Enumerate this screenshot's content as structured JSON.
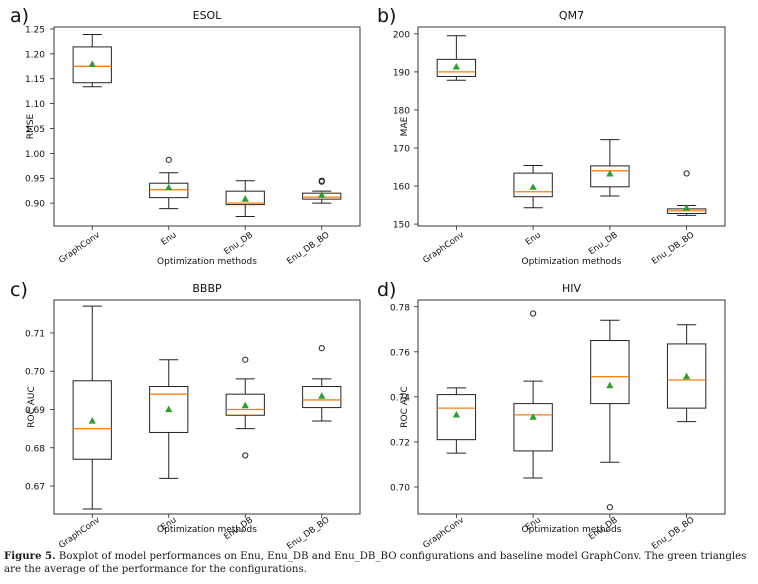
{
  "caption": {
    "label": "Figure 5.",
    "text": "Boxplot of model performances on Enu, Enu_DB and Enu_DB_BO configurations and baseline model GraphConv. The green triangles are the average of the performance for the configurations."
  },
  "colors": {
    "median": "#ff7f0e",
    "mean": "#2ca02c",
    "box": "#222222"
  },
  "chart_data": [
    {
      "panel": "a)",
      "title": "ESOL",
      "type": "box",
      "xlabel": "Optimization methods",
      "ylabel": "RMSE",
      "ylim": [
        0.854,
        1.254
      ],
      "yticks": [
        0.9,
        0.95,
        1.0,
        1.05,
        1.1,
        1.15,
        1.2,
        1.25
      ],
      "ytick_labels": [
        "0.90",
        "0.95",
        "1.00",
        "1.05",
        "1.10",
        "1.15",
        "1.20",
        "1.25"
      ],
      "categories": [
        "GraphConv",
        "Enu",
        "Enu_DB",
        "Enu_DB_BO"
      ],
      "boxes": [
        {
          "whislo": 1.134,
          "q1": 1.142,
          "med": 1.175,
          "q3": 1.214,
          "whishi": 1.239,
          "mean": 1.179,
          "fliers": []
        },
        {
          "whislo": 0.889,
          "q1": 0.911,
          "med": 0.927,
          "q3": 0.94,
          "whishi": 0.961,
          "mean": 0.931,
          "fliers": [
            0.987
          ]
        },
        {
          "whislo": 0.873,
          "q1": 0.897,
          "med": 0.9,
          "q3": 0.924,
          "whishi": 0.945,
          "mean": 0.908,
          "fliers": []
        },
        {
          "whislo": 0.9,
          "q1": 0.908,
          "med": 0.912,
          "q3": 0.92,
          "whishi": 0.924,
          "mean": 0.916,
          "fliers": [
            0.943,
            0.945
          ]
        }
      ]
    },
    {
      "panel": "b)",
      "title": "QM7",
      "type": "box",
      "xlabel": "Optimization methods",
      "ylabel": "MAE",
      "ylim": [
        149.5,
        201.8
      ],
      "yticks": [
        150,
        160,
        170,
        180,
        190,
        200
      ],
      "ytick_labels": [
        "150",
        "160",
        "170",
        "180",
        "190",
        "200"
      ],
      "categories": [
        "GraphConv",
        "Enu",
        "Enu_DB",
        "Enu_DB_BO"
      ],
      "boxes": [
        {
          "whislo": 187.8,
          "q1": 188.8,
          "med": 190.0,
          "q3": 193.3,
          "whishi": 199.5,
          "mean": 191.3,
          "fliers": []
        },
        {
          "whislo": 154.3,
          "q1": 157.2,
          "med": 158.5,
          "q3": 163.4,
          "whishi": 165.4,
          "mean": 159.7,
          "fliers": []
        },
        {
          "whislo": 157.4,
          "q1": 159.8,
          "med": 164.0,
          "q3": 165.3,
          "whishi": 172.2,
          "mean": 163.2,
          "fliers": []
        },
        {
          "whislo": 152.3,
          "q1": 152.8,
          "med": 153.5,
          "q3": 154.0,
          "whishi": 154.9,
          "mean": 154.2,
          "fliers": [
            163.3
          ]
        }
      ]
    },
    {
      "panel": "c)",
      "title": "BBBP",
      "type": "box",
      "xlabel": "Optimization methods",
      "ylabel": "ROC AUC",
      "ylim": [
        0.6627,
        0.7186
      ],
      "yticks": [
        0.67,
        0.68,
        0.69,
        0.7,
        0.71
      ],
      "ytick_labels": [
        "0.67",
        "0.68",
        "0.69",
        "0.70",
        "0.71"
      ],
      "categories": [
        "GraphConv",
        "Enu",
        "Enu_DB",
        "Enu_DB_BO"
      ],
      "boxes": [
        {
          "whislo": 0.664,
          "q1": 0.677,
          "med": 0.685,
          "q3": 0.6975,
          "whishi": 0.717,
          "mean": 0.687,
          "fliers": []
        },
        {
          "whislo": 0.672,
          "q1": 0.684,
          "med": 0.694,
          "q3": 0.696,
          "whishi": 0.703,
          "mean": 0.69,
          "fliers": []
        },
        {
          "whislo": 0.685,
          "q1": 0.6885,
          "med": 0.69,
          "q3": 0.694,
          "whishi": 0.698,
          "mean": 0.691,
          "fliers": [
            0.678,
            0.703
          ]
        },
        {
          "whislo": 0.687,
          "q1": 0.6905,
          "med": 0.6925,
          "q3": 0.696,
          "whishi": 0.698,
          "mean": 0.6935,
          "fliers": [
            0.706
          ]
        }
      ]
    },
    {
      "panel": "d)",
      "title": "HIV",
      "type": "box",
      "xlabel": "Optimization methods",
      "ylabel": "ROC AUC",
      "ylim": [
        0.688,
        0.783
      ],
      "yticks": [
        0.7,
        0.72,
        0.74,
        0.76,
        0.78
      ],
      "ytick_labels": [
        "0.70",
        "0.72",
        "0.74",
        "0.76",
        "0.78"
      ],
      "categories": [
        "GraphConv",
        "Enu",
        "Enu_DB",
        "Enu_DB_BO"
      ],
      "boxes": [
        {
          "whislo": 0.715,
          "q1": 0.721,
          "med": 0.735,
          "q3": 0.741,
          "whishi": 0.744,
          "mean": 0.732,
          "fliers": []
        },
        {
          "whislo": 0.704,
          "q1": 0.716,
          "med": 0.732,
          "q3": 0.737,
          "whishi": 0.747,
          "mean": 0.731,
          "fliers": [
            0.777
          ]
        },
        {
          "whislo": 0.711,
          "q1": 0.737,
          "med": 0.749,
          "q3": 0.765,
          "whishi": 0.774,
          "mean": 0.745,
          "fliers": [
            0.691
          ]
        },
        {
          "whislo": 0.729,
          "q1": 0.735,
          "med": 0.7475,
          "q3": 0.7635,
          "whishi": 0.772,
          "mean": 0.749,
          "fliers": []
        }
      ]
    }
  ]
}
